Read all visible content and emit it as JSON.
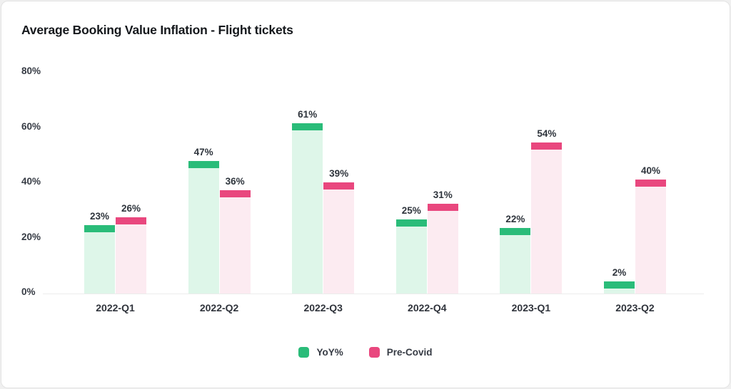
{
  "chart_data": {
    "type": "bar",
    "title": "Average Booking Value Inflation - Flight tickets",
    "categories": [
      "2022-Q1",
      "2022-Q2",
      "2022-Q3",
      "2022-Q4",
      "2023-Q1",
      "2023-Q2"
    ],
    "series": [
      {
        "name": "YoY%",
        "color": "#2abc79",
        "color_light": "#def6e9",
        "values": [
          23,
          47,
          61,
          25,
          22,
          2
        ]
      },
      {
        "name": "Pre-Covid",
        "color": "#e9477e",
        "color_light": "#fcebf1",
        "values": [
          26,
          36,
          39,
          31,
          54,
          40
        ]
      }
    ],
    "value_label_suffix": "%",
    "y_ticks": [
      "80%",
      "60%",
      "40%",
      "20%",
      "0%"
    ],
    "ylim": [
      0,
      80
    ],
    "xlabel": "",
    "ylabel": "",
    "grid": false,
    "legend_position": "bottom"
  }
}
